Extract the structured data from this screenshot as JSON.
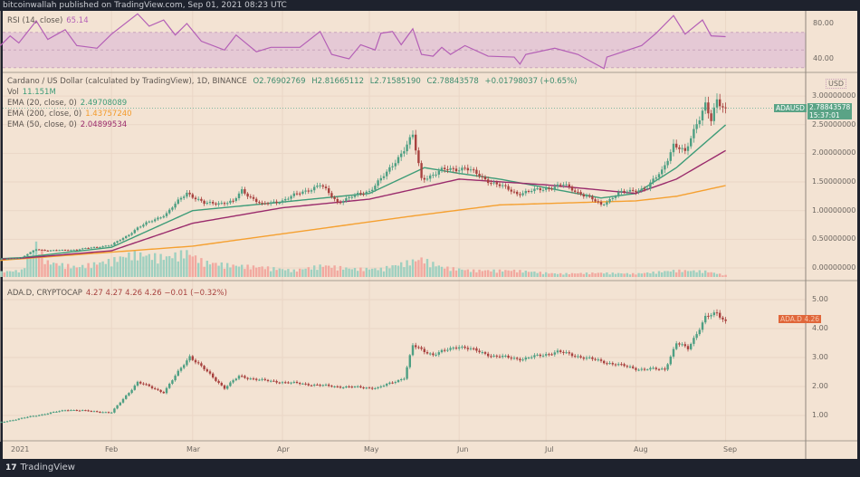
{
  "header": {
    "publisher_line": "bitcoinwallah published on TradingView.com, Sep 01, 2021 08:23 UTC"
  },
  "footer": {
    "brand": "TradingView"
  },
  "colors": {
    "background": "#f3e3d3",
    "up": "#4e9f83",
    "down": "#a8423f",
    "ema20": "#3e9c78",
    "ema50": "#9a2b6c",
    "ema200": "#f5a030",
    "rsi": "#b45fb6",
    "rsi_band": "#e5c9d5"
  },
  "chart_data": [
    {
      "type": "line",
      "title": "RSI (14, close)",
      "value_label": "65.14",
      "ylim": [
        20,
        95
      ],
      "y_ticks": [
        "80.00",
        "40.00"
      ],
      "band": [
        30,
        70
      ],
      "points": [
        [
          "2020-12-24",
          53
        ],
        [
          "2020-12-28",
          66
        ],
        [
          "2020-12-31",
          58
        ],
        [
          "2021-01-06",
          83
        ],
        [
          "2021-01-10",
          62
        ],
        [
          "2021-01-16",
          73
        ],
        [
          "2021-01-20",
          55
        ],
        [
          "2021-01-27",
          52
        ],
        [
          "2021-02-01",
          68
        ],
        [
          "2021-02-10",
          91
        ],
        [
          "2021-02-14",
          77
        ],
        [
          "2021-02-19",
          84
        ],
        [
          "2021-02-23",
          67
        ],
        [
          "2021-02-27",
          80
        ],
        [
          "2021-03-04",
          60
        ],
        [
          "2021-03-12",
          50
        ],
        [
          "2021-03-16",
          67
        ],
        [
          "2021-03-23",
          48
        ],
        [
          "2021-03-28",
          53
        ],
        [
          "2021-04-07",
          53
        ],
        [
          "2021-04-14",
          71
        ],
        [
          "2021-04-18",
          45
        ],
        [
          "2021-04-24",
          40
        ],
        [
          "2021-04-28",
          56
        ],
        [
          "2021-05-03",
          50
        ],
        [
          "2021-05-05",
          69
        ],
        [
          "2021-05-09",
          71
        ],
        [
          "2021-05-12",
          56
        ],
        [
          "2021-05-16",
          74
        ],
        [
          "2021-05-19",
          45
        ],
        [
          "2021-05-23",
          43
        ],
        [
          "2021-05-26",
          53
        ],
        [
          "2021-05-29",
          45
        ],
        [
          "2021-06-03",
          55
        ],
        [
          "2021-06-11",
          43
        ],
        [
          "2021-06-20",
          42
        ],
        [
          "2021-06-22",
          34
        ],
        [
          "2021-06-24",
          45
        ],
        [
          "2021-07-04",
          52
        ],
        [
          "2021-07-12",
          45
        ],
        [
          "2021-07-21",
          29
        ],
        [
          "2021-07-22",
          42
        ],
        [
          "2021-08-03",
          55
        ],
        [
          "2021-08-08",
          69
        ],
        [
          "2021-08-14",
          89
        ],
        [
          "2021-08-18",
          68
        ],
        [
          "2021-08-24",
          84
        ],
        [
          "2021-08-27",
          66
        ],
        [
          "2021-09-01",
          65.14
        ]
      ]
    },
    {
      "type": "candlestick",
      "title": "Cardano / US Dollar (calculated by TradingView), 1D, BINANCE",
      "ohlc_label": {
        "open": "O2.76902769",
        "high": "H2.81665112",
        "low": "L2.71585190",
        "close": "C2.78843578",
        "change": "+0.01798037 (+0.65%)"
      },
      "currency": "USD",
      "symbol": "ADAUSD",
      "last_price": "2.78843578",
      "countdown": "15:37:01",
      "ylim": [
        -0.1,
        3.1
      ],
      "y_ticks": [
        "3.00000000",
        "2.50000000",
        "2.00000000",
        "1.50000000",
        "1.00000000",
        "0.50000000",
        "0.00000000"
      ],
      "x_ticks": [
        "2021",
        "Feb",
        "Mar",
        "Apr",
        "May",
        "Jun",
        "Jul",
        "Aug",
        "Sep"
      ],
      "close": [
        [
          "2020-12-24",
          0.15
        ],
        [
          "2021-01-01",
          0.18
        ],
        [
          "2021-01-06",
          0.33
        ],
        [
          "2021-01-10",
          0.3
        ],
        [
          "2021-01-20",
          0.32
        ],
        [
          "2021-02-01",
          0.4
        ],
        [
          "2021-02-06",
          0.55
        ],
        [
          "2021-02-10",
          0.7
        ],
        [
          "2021-02-20",
          0.95
        ],
        [
          "2021-02-27",
          1.32
        ],
        [
          "2021-03-05",
          1.12
        ],
        [
          "2021-03-15",
          1.15
        ],
        [
          "2021-03-18",
          1.35
        ],
        [
          "2021-03-25",
          1.1
        ],
        [
          "2021-04-01",
          1.18
        ],
        [
          "2021-04-14",
          1.45
        ],
        [
          "2021-04-20",
          1.15
        ],
        [
          "2021-05-01",
          1.35
        ],
        [
          "2021-05-07",
          1.65
        ],
        [
          "2021-05-16",
          2.3
        ],
        [
          "2021-05-19",
          1.55
        ],
        [
          "2021-05-26",
          1.7
        ],
        [
          "2021-06-03",
          1.75
        ],
        [
          "2021-06-10",
          1.55
        ],
        [
          "2021-06-21",
          1.3
        ],
        [
          "2021-06-27",
          1.35
        ],
        [
          "2021-07-07",
          1.45
        ],
        [
          "2021-07-15",
          1.25
        ],
        [
          "2021-07-20",
          1.1
        ],
        [
          "2021-07-26",
          1.3
        ],
        [
          "2021-08-05",
          1.4
        ],
        [
          "2021-08-10",
          1.7
        ],
        [
          "2021-08-14",
          2.15
        ],
        [
          "2021-08-18",
          2.0
        ],
        [
          "2021-08-22",
          2.55
        ],
        [
          "2021-08-25",
          2.85
        ],
        [
          "2021-08-27",
          2.55
        ],
        [
          "2021-08-29",
          2.9
        ],
        [
          "2021-09-01",
          2.78843578
        ]
      ],
      "indicators": [
        {
          "name": "Vol",
          "value": "11.151M",
          "volume_millions": [
            [
              "2020-12-24",
              30
            ],
            [
              "2021-01-01",
              40
            ],
            [
              "2021-01-06",
              200
            ],
            [
              "2021-01-10",
              90
            ],
            [
              "2021-01-20",
              60
            ],
            [
              "2021-02-01",
              100
            ],
            [
              "2021-02-08",
              140
            ],
            [
              "2021-02-14",
              130
            ],
            [
              "2021-02-20",
              120
            ],
            [
              "2021-02-27",
              150
            ],
            [
              "2021-03-05",
              90
            ],
            [
              "2021-03-15",
              70
            ],
            [
              "2021-03-25",
              60
            ],
            [
              "2021-04-05",
              40
            ],
            [
              "2021-04-15",
              70
            ],
            [
              "2021-04-25",
              50
            ],
            [
              "2021-05-05",
              50
            ],
            [
              "2021-05-12",
              80
            ],
            [
              "2021-05-19",
              110
            ],
            [
              "2021-05-26",
              60
            ],
            [
              "2021-06-05",
              40
            ],
            [
              "2021-06-20",
              40
            ],
            [
              "2021-07-05",
              20
            ],
            [
              "2021-07-20",
              25
            ],
            [
              "2021-08-01",
              20
            ],
            [
              "2021-08-15",
              40
            ],
            [
              "2021-08-25",
              35
            ],
            [
              "2021-09-01",
              11.151
            ]
          ]
        },
        {
          "name": "EMA (20, close, 0)",
          "value": "2.49708089",
          "points": [
            [
              "2020-12-24",
              0.16
            ],
            [
              "2021-01-01",
              0.18
            ],
            [
              "2021-02-01",
              0.36
            ],
            [
              "2021-03-01",
              1.0
            ],
            [
              "2021-04-01",
              1.15
            ],
            [
              "2021-05-01",
              1.3
            ],
            [
              "2021-05-20",
              1.75
            ],
            [
              "2021-06-01",
              1.65
            ],
            [
              "2021-06-15",
              1.55
            ],
            [
              "2021-07-01",
              1.4
            ],
            [
              "2021-07-20",
              1.22
            ],
            [
              "2021-08-01",
              1.3
            ],
            [
              "2021-08-15",
              1.75
            ],
            [
              "2021-09-01",
              2.497
            ]
          ]
        },
        {
          "name": "EMA (200, close, 0)",
          "value": "1.43757240",
          "points": [
            [
              "2020-12-24",
              0.13
            ],
            [
              "2021-03-01",
              0.38
            ],
            [
              "2021-05-15",
              0.9
            ],
            [
              "2021-06-15",
              1.1
            ],
            [
              "2021-08-01",
              1.17
            ],
            [
              "2021-08-15",
              1.25
            ],
            [
              "2021-09-01",
              1.4376
            ]
          ]
        },
        {
          "name": "EMA (50, close, 0)",
          "value": "2.04899534",
          "points": [
            [
              "2020-12-24",
              0.15
            ],
            [
              "2021-01-01",
              0.17
            ],
            [
              "2021-02-01",
              0.3
            ],
            [
              "2021-03-01",
              0.78
            ],
            [
              "2021-04-01",
              1.05
            ],
            [
              "2021-05-01",
              1.2
            ],
            [
              "2021-06-01",
              1.55
            ],
            [
              "2021-07-01",
              1.45
            ],
            [
              "2021-08-01",
              1.3
            ],
            [
              "2021-08-15",
              1.55
            ],
            [
              "2021-09-01",
              2.049
            ]
          ]
        }
      ]
    },
    {
      "type": "candlestick",
      "title": "ADA.D, CRYPTOCAP",
      "ohlc_label": "4.27  4.27  4.26  4.26  −0.01 (−0.32%)",
      "tag": "ADA.D  4.26",
      "ylim": [
        0.3,
        5.4
      ],
      "y_ticks": [
        "5.00",
        "4.00",
        "3.00",
        "2.00",
        "1.00"
      ],
      "close": [
        [
          "2020-12-24",
          0.75
        ],
        [
          "2021-01-06",
          1.0
        ],
        [
          "2021-01-17",
          1.2
        ],
        [
          "2021-02-01",
          1.1
        ],
        [
          "2021-02-10",
          2.15
        ],
        [
          "2021-02-19",
          1.8
        ],
        [
          "2021-02-28",
          3.05
        ],
        [
          "2021-03-12",
          1.95
        ],
        [
          "2021-03-17",
          2.35
        ],
        [
          "2021-03-26",
          2.2
        ],
        [
          "2021-04-19",
          2.0
        ],
        [
          "2021-05-04",
          1.95
        ],
        [
          "2021-05-13",
          2.3
        ],
        [
          "2021-05-16",
          3.4
        ],
        [
          "2021-05-23",
          3.1
        ],
        [
          "2021-06-01",
          3.4
        ],
        [
          "2021-06-13",
          3.05
        ],
        [
          "2021-06-23",
          2.95
        ],
        [
          "2021-07-05",
          3.2
        ],
        [
          "2021-07-21",
          2.85
        ],
        [
          "2021-08-02",
          2.6
        ],
        [
          "2021-08-11",
          2.6
        ],
        [
          "2021-08-15",
          3.5
        ],
        [
          "2021-08-19",
          3.3
        ],
        [
          "2021-08-25",
          4.4
        ],
        [
          "2021-08-29",
          4.5
        ],
        [
          "2021-09-01",
          4.26
        ]
      ]
    }
  ]
}
